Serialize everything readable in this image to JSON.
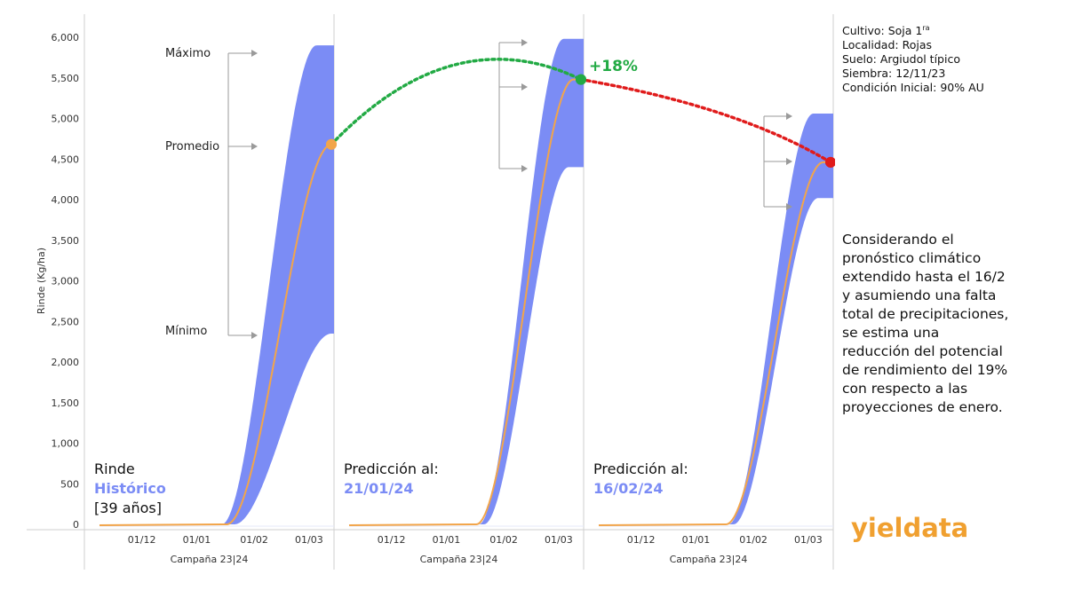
{
  "meta": {
    "cultivo_prefix": "Cultivo: Soja 1",
    "cultivo_sup": "ra",
    "localidad": "Localidad: Rojas",
    "suelo": "Suelo: Argiudol típico",
    "siembra": "Siembra: 12/11/23",
    "condicion": "Condición Inicial: 90% AU"
  },
  "note": "Considerando el pronóstico climático extendido hasta el 16/2 y asumiendo una falta total de precipitaciones, se estima una reducción del potencial de rendimiento del 19% con respecto a las proyecciones de enero.",
  "logo": "yieldata",
  "colors": {
    "band": "#7b8cf5",
    "mean_line": "#f2a54a",
    "increase": "#22aa44",
    "decrease": "#e01b1b",
    "label_blue": "#7b8cf5"
  },
  "chart_data": {
    "type": "area",
    "ylabel": "Rinde (Kg/ha)",
    "xlabel": "Campaña 23|24",
    "ylim": [
      0,
      6000
    ],
    "yticks": [
      "0",
      "500",
      "1,000",
      "1,500",
      "2,000",
      "2,500",
      "3,000",
      "3,500",
      "4,000",
      "4,500",
      "5,000",
      "5,500",
      "6,000"
    ],
    "xticks": [
      "01/12",
      "01/01",
      "01/02",
      "01/03"
    ],
    "annotations": {
      "max": "Máximo",
      "mean": "Promedio",
      "min": "Mínimo"
    },
    "panels": [
      {
        "label_line1": "Rinde",
        "label_line2": "Histórico",
        "label_line3": "[39 años]",
        "max_final": 5900,
        "mean_final": 4680,
        "min_final": 2350
      },
      {
        "label_line1": "Predicción al:",
        "label_line2": "21/01/24",
        "max_final": 5980,
        "mean_final": 5480,
        "min_final": 4400,
        "change": "+18%"
      },
      {
        "label_line1": "Predicción al:",
        "label_line2": "16/02/24",
        "max_final": 5060,
        "mean_final": 4460,
        "min_final": 4020,
        "change": "-19%"
      }
    ]
  }
}
